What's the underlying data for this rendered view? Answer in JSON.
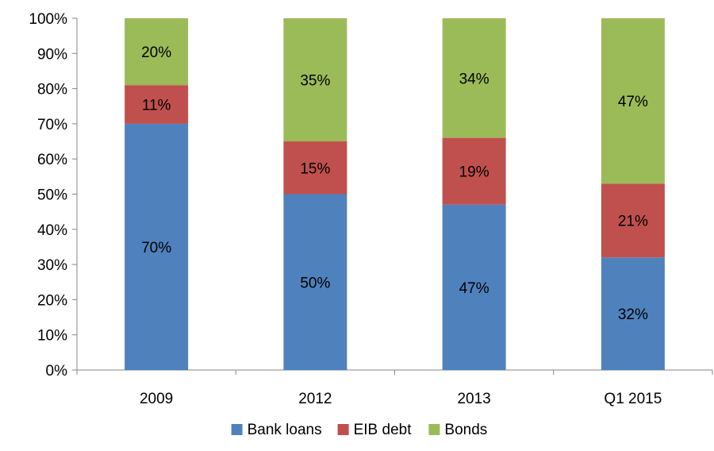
{
  "chart_data": {
    "type": "bar",
    "stacked": true,
    "categories": [
      "2009",
      "2012",
      "2013",
      "Q1 2015"
    ],
    "series": [
      {
        "name": "Bank loans",
        "values": [
          70,
          50,
          47,
          32
        ],
        "labels": [
          "70%",
          "50%",
          "47%",
          "32%"
        ]
      },
      {
        "name": "EIB debt",
        "values": [
          11,
          15,
          19,
          21
        ],
        "labels": [
          "11%",
          "15%",
          "19%",
          "21%"
        ]
      },
      {
        "name": "Bonds",
        "values": [
          20,
          35,
          34,
          47
        ],
        "labels": [
          "20%",
          "35%",
          "34%",
          "47%"
        ]
      }
    ],
    "ylim": [
      0,
      100
    ],
    "yticks": [
      "0%",
      "10%",
      "20%",
      "30%",
      "40%",
      "50%",
      "60%",
      "70%",
      "80%",
      "90%",
      "100%"
    ],
    "legend_position": "bottom",
    "grid": false
  },
  "colors": {
    "Bank loans": "#4F81BD",
    "EIB debt": "#C0504D",
    "Bonds": "#9BBB59",
    "axis": "#868686"
  }
}
